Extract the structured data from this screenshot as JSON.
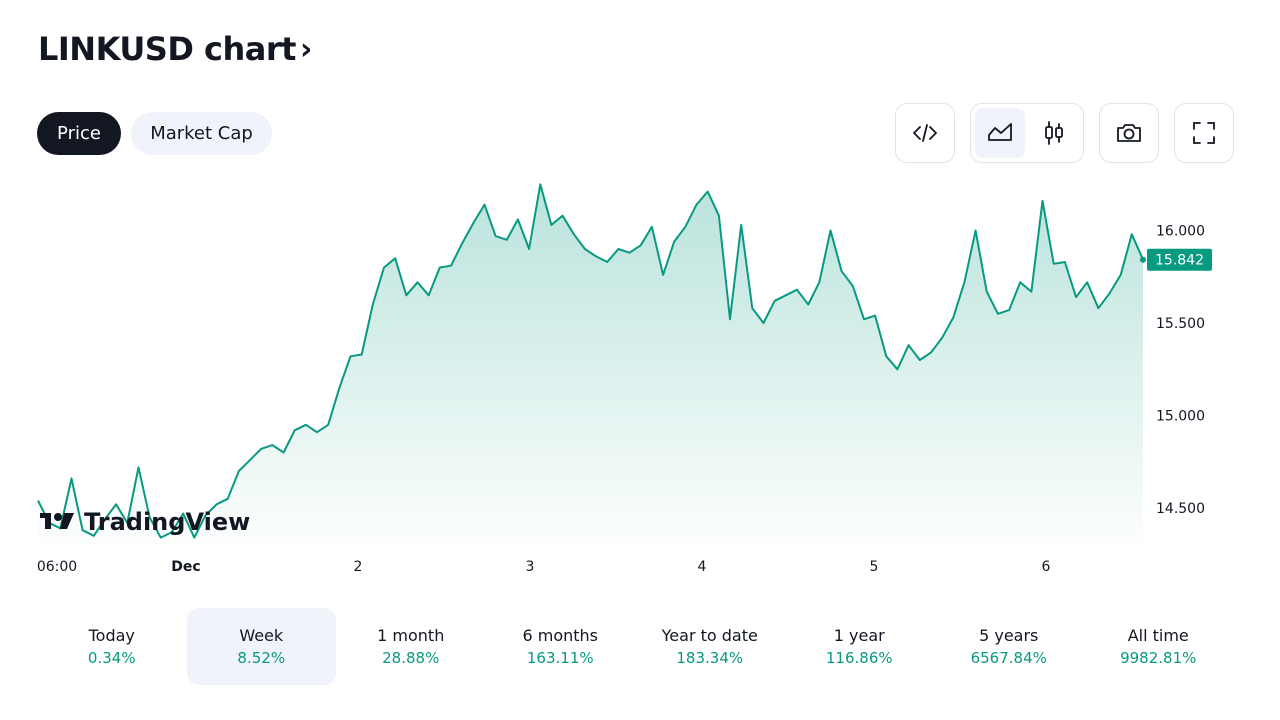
{
  "header": {
    "title": "LINKUSD chart",
    "title_chevron": "›"
  },
  "pills": {
    "price": "Price",
    "market_cap": "Market Cap"
  },
  "toolbar": {
    "icons": [
      "embed-code-icon",
      "area-chart-icon",
      "candlestick-icon",
      "camera-icon",
      "fullscreen-icon"
    ],
    "selected": "area-chart-icon"
  },
  "colors": {
    "line": "#089981",
    "accent_dark": "#131722",
    "badge_bg": "#089981",
    "positive": "#089981"
  },
  "watermark": {
    "text": "TradingView"
  },
  "chart_data": {
    "type": "area",
    "x_ticks": [
      "06:00",
      "Dec",
      "2",
      "3",
      "4",
      "5",
      "6"
    ],
    "y_ticks": [
      "16.000",
      "15.500",
      "15.000",
      "14.500"
    ],
    "ylim": [
      14.3,
      16.3
    ],
    "last_price": "15.842",
    "grid": false,
    "series": [
      {
        "values": [
          14.54,
          14.42,
          14.39,
          14.66,
          14.38,
          14.35,
          14.44,
          14.52,
          14.42,
          14.72,
          14.45,
          14.34,
          14.37,
          14.47,
          14.34,
          14.46,
          14.52,
          14.55,
          14.7,
          14.76,
          14.82,
          14.84,
          14.8,
          14.92,
          14.95,
          14.91,
          14.95,
          15.15,
          15.32,
          15.33,
          15.6,
          15.8,
          15.85,
          15.65,
          15.72,
          15.65,
          15.8,
          15.81,
          15.93,
          16.04,
          16.14,
          15.97,
          15.95,
          16.06,
          15.9,
          16.25,
          16.03,
          16.08,
          15.98,
          15.9,
          15.86,
          15.83,
          15.9,
          15.88,
          15.92,
          16.02,
          15.76,
          15.94,
          16.02,
          16.14,
          16.21,
          16.08,
          15.52,
          16.03,
          15.58,
          15.5,
          15.62,
          15.65,
          15.68,
          15.6,
          15.72,
          16.0,
          15.78,
          15.7,
          15.52,
          15.54,
          15.32,
          15.25,
          15.38,
          15.3,
          15.34,
          15.42,
          15.53,
          15.72,
          16.0,
          15.67,
          15.55,
          15.57,
          15.72,
          15.67,
          16.16,
          15.82,
          15.83,
          15.64,
          15.72,
          15.58,
          15.66,
          15.76,
          15.98,
          15.842
        ]
      }
    ]
  },
  "performance": [
    {
      "label": "Today",
      "value": "0.34%"
    },
    {
      "label": "Week",
      "value": "8.52%"
    },
    {
      "label": "1 month",
      "value": "28.88%"
    },
    {
      "label": "6 months",
      "value": "163.11%"
    },
    {
      "label": "Year to date",
      "value": "183.34%"
    },
    {
      "label": "1 year",
      "value": "116.86%"
    },
    {
      "label": "5 years",
      "value": "6567.84%"
    },
    {
      "label": "All time",
      "value": "9982.81%"
    }
  ],
  "performance_selected": "Week"
}
